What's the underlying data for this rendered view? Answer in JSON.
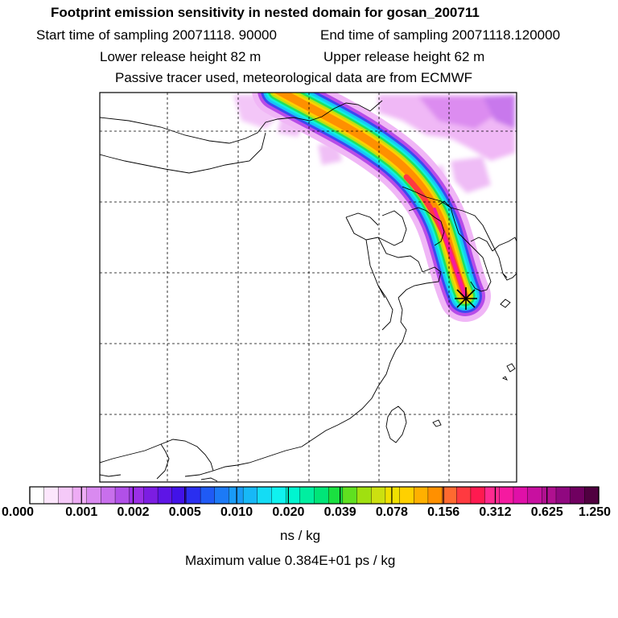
{
  "header": {
    "title": "Footprint emission sensitivity in nested domain for gosan_200711",
    "start_label": "Start time of sampling 20071118. 90000",
    "end_label": "End time of sampling 20071118.120000",
    "lower_height": "Lower release height   82 m",
    "upper_height": "Upper release height   62 m",
    "tracer_note": "Passive tracer used, meteorological data are from ECMWF"
  },
  "colorbar": {
    "tick_labels": [
      "0.000",
      "0.001",
      "0.002",
      "0.005",
      "0.010",
      "0.020",
      "0.039",
      "0.078",
      "0.156",
      "0.312",
      "0.625",
      "1.250"
    ],
    "unit": "ns / kg",
    "colors": [
      "#ffffff",
      "#fce6fc",
      "#f5c9f8",
      "#eeacf5",
      "#d98af0",
      "#c86fec",
      "#b150e8",
      "#9b2fe6",
      "#7c1de2",
      "#5e15e6",
      "#4212e8",
      "#2a2ff0",
      "#1f5af5",
      "#1c7af7",
      "#199bf7",
      "#17b8f7",
      "#14dcf5",
      "#0ff2f0",
      "#00f5d0",
      "#00eea0",
      "#00e578",
      "#1ae040",
      "#60e020",
      "#a0e010",
      "#cce010",
      "#f0e000",
      "#ffd000",
      "#ffb000",
      "#ff9000",
      "#ff6a30",
      "#ff3a40",
      "#ff1a50",
      "#ff2a90",
      "#f51aa0",
      "#e010a8",
      "#c810a0",
      "#b01090",
      "#900880",
      "#700060",
      "#500040"
    ]
  },
  "max_value": "Maximum value  0.384E+01 ps / kg",
  "receptor_icon": "receptor-star-icon"
}
